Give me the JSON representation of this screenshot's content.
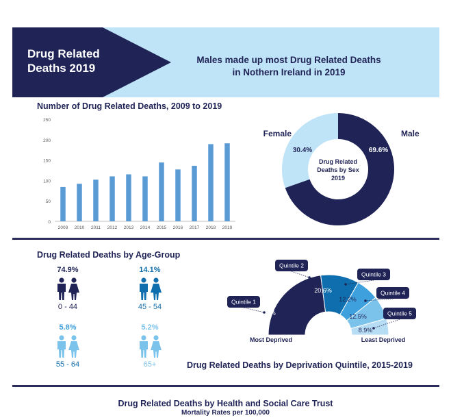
{
  "banner": {
    "title_line1": "Drug Related",
    "title_line2": "Deaths 2019",
    "headline_line1": "Males made up most Drug Related Deaths",
    "headline_line2": "in Nothern Ireland in 2019"
  },
  "colors": {
    "navy": "#1f2356",
    "bar": "#5b9bd5",
    "light_blue": "#bfe3f7",
    "q1": "#1f2356",
    "q2": "#0f6fae",
    "q3": "#3ea0dc",
    "q4": "#7cc3ec",
    "q5": "#b7ddf4"
  },
  "chart_data": [
    {
      "type": "bar",
      "title": "Number of Drug Related Deaths, 2009 to 2019",
      "categories": [
        "2009",
        "2010",
        "2011",
        "2012",
        "2013",
        "2014",
        "2015",
        "2016",
        "2017",
        "2018",
        "2019"
      ],
      "values": [
        84,
        92,
        102,
        110,
        115,
        110,
        144,
        127,
        136,
        189,
        191
      ],
      "ylim": [
        0,
        250
      ],
      "yticks": [
        "0",
        "50",
        "100",
        "150",
        "200",
        "250"
      ],
      "xlabel": "",
      "ylabel": ""
    },
    {
      "type": "pie",
      "center_label_lines": [
        "Drug Related",
        "Deaths by Sex",
        "2019"
      ],
      "labels": [
        "Male",
        "Female"
      ],
      "values": [
        69.6,
        30.4
      ],
      "value_labels": [
        "69.6%",
        "30.4%"
      ]
    },
    {
      "type": "bar",
      "title": "Drug Related Deaths by Age-Group",
      "categories": [
        "0 - 44",
        "45 - 54",
        "55 - 64",
        "65+"
      ],
      "values": [
        74.9,
        14.1,
        5.8,
        5.2
      ],
      "value_labels": [
        "74.9%",
        "14.1%",
        "5.8%",
        "5.2%"
      ]
    },
    {
      "type": "pie",
      "title": "Drug Related Deaths by Deprivation Quintile, 2015-2019",
      "labels": [
        "Quintile 1",
        "Quintile 2",
        "Quintile 3",
        "Quintile 4",
        "Quintile 5"
      ],
      "values": [
        45.9,
        20.6,
        12.2,
        12.5,
        8.9
      ],
      "value_labels": [
        "45.9%",
        "20.6%",
        "12.2%",
        "12.5%",
        "8.9%"
      ],
      "end_labels": [
        "Most Deprived",
        "Least Deprived"
      ]
    }
  ],
  "hsc": {
    "title": "Drug Related Deaths by Health and Social Care Trust",
    "subtitle": "Mortality Rates per 100,000"
  }
}
